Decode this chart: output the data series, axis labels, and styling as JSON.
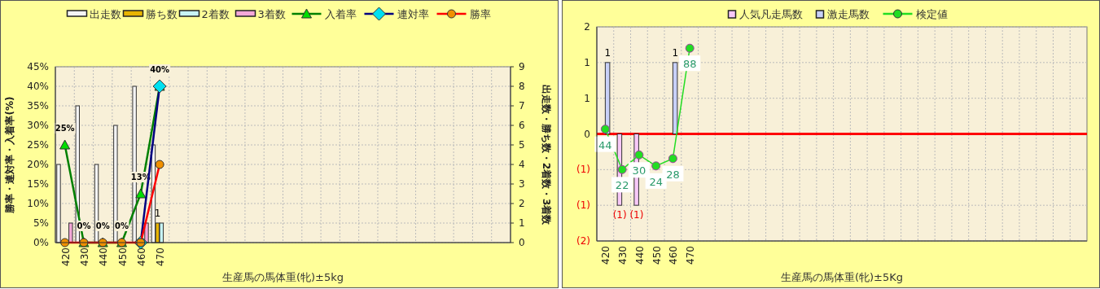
{
  "chart_data": [
    {
      "type": "bar",
      "xlabel": "生産馬の馬体重(牝)±5kg",
      "ylabel": "勝率・連対率・入着率(%)",
      "y2label": "出走数・勝ち数・2着数・3着数",
      "categories": [
        "420",
        "430",
        "440",
        "450",
        "460",
        "470",
        null,
        null,
        null,
        null,
        null,
        null,
        null,
        null,
        null,
        null,
        null,
        null,
        null,
        null,
        null,
        null,
        null,
        null
      ],
      "series": [
        {
          "name": "出走数",
          "axis": "y2",
          "color": "#f4f4f4",
          "values": [
            4,
            7,
            4,
            6,
            8,
            5,
            null,
            null,
            null,
            null,
            null,
            null,
            null,
            null,
            null,
            null,
            null,
            null,
            null,
            null,
            null,
            null,
            null,
            null
          ]
        },
        {
          "name": "勝ち数",
          "axis": "y2",
          "color": "#e8b400",
          "values": [
            null,
            null,
            null,
            null,
            null,
            1,
            null,
            null,
            null,
            null,
            null,
            null,
            null,
            null,
            null,
            null,
            null,
            null,
            null,
            null,
            null,
            null,
            null,
            null
          ],
          "value_labels": [
            null,
            null,
            null,
            null,
            null,
            "1",
            null,
            null,
            null,
            null,
            null,
            null,
            null,
            null,
            null,
            null,
            null,
            null,
            null,
            null,
            null,
            null,
            null,
            null
          ]
        },
        {
          "name": "2着数",
          "axis": "y2",
          "color": "#c8f4f4",
          "values": [
            null,
            null,
            null,
            null,
            null,
            1,
            null,
            null,
            null,
            null,
            null,
            null,
            null,
            null,
            null,
            null,
            null,
            null,
            null,
            null,
            null,
            null,
            null,
            null
          ]
        },
        {
          "name": "3着数",
          "axis": "y2",
          "color": "#f4a8d8",
          "values": [
            1,
            null,
            null,
            null,
            1,
            null,
            null,
            null,
            null,
            null,
            null,
            null,
            null,
            null,
            null,
            null,
            null,
            null,
            null,
            null,
            null,
            null,
            null,
            null
          ]
        },
        {
          "name": "入着率",
          "type": "line",
          "color": "#008000",
          "marker": "triangle",
          "values": [
            25,
            0,
            0,
            0,
            12.5,
            40,
            null,
            null,
            null,
            null,
            null,
            null,
            null,
            null,
            null,
            null,
            null,
            null,
            null,
            null,
            null,
            null,
            null,
            null
          ],
          "value_labels": [
            "25%",
            "0%",
            "0%",
            "0%",
            "13%",
            "40%",
            null,
            null,
            null,
            null,
            null,
            null,
            null,
            null,
            null,
            null,
            null,
            null,
            null,
            null,
            null,
            null,
            null,
            null
          ]
        },
        {
          "name": "連対率",
          "type": "line",
          "color": "#000080",
          "marker": "diamond",
          "values": [
            null,
            null,
            null,
            null,
            0,
            40,
            null,
            null,
            null,
            null,
            null,
            null,
            null,
            null,
            null,
            null,
            null,
            null,
            null,
            null,
            null,
            null,
            null,
            null
          ]
        },
        {
          "name": "勝率",
          "type": "line",
          "color": "#ff0000",
          "marker": "circle",
          "values": [
            0,
            0,
            0,
            0,
            0,
            20,
            null,
            null,
            null,
            null,
            null,
            null,
            null,
            null,
            null,
            null,
            null,
            null,
            null,
            null,
            null,
            null,
            null,
            null
          ]
        }
      ],
      "ylim": [
        0,
        45
      ],
      "yticks": [
        {
          "value": 0,
          "label": "0%"
        },
        {
          "value": 5,
          "label": "5%"
        },
        {
          "value": 10,
          "label": "10%"
        },
        {
          "value": 15,
          "label": "15%"
        },
        {
          "value": 20,
          "label": "20%"
        },
        {
          "value": 25,
          "label": "25%"
        },
        {
          "value": 30,
          "label": "30%"
        },
        {
          "value": 35,
          "label": "35%"
        },
        {
          "value": 40,
          "label": "40%"
        },
        {
          "value": 45,
          "label": "45%"
        }
      ],
      "y2lim": [
        0,
        9
      ],
      "y2ticks": [
        0,
        1,
        2,
        3,
        4,
        5,
        6,
        7,
        8,
        9
      ],
      "grid": true,
      "legend": "top"
    },
    {
      "type": "bar",
      "xlabel": "生産馬の馬体重(牝)±5Kg",
      "categories": [
        "420",
        "430",
        "440",
        "450",
        "460",
        "470",
        null,
        null,
        null,
        null,
        null,
        null,
        null,
        null,
        null,
        null,
        null,
        null,
        null,
        null,
        null,
        null,
        null,
        null,
        null,
        null,
        null,
        null,
        null
      ],
      "series": [
        {
          "name": "人気凡走馬数",
          "color": "#f8c8f8",
          "values": [
            null,
            -1,
            -1,
            null,
            null,
            null,
            null,
            null,
            null,
            null,
            null,
            null,
            null,
            null,
            null,
            null,
            null,
            null,
            null,
            null,
            null,
            null,
            null,
            null,
            null,
            null,
            null,
            null,
            null
          ],
          "value_labels": [
            null,
            "(1)",
            "(1)",
            null,
            null,
            null,
            null,
            null,
            null,
            null,
            null,
            null,
            null,
            null,
            null,
            null,
            null,
            null,
            null,
            null,
            null,
            null,
            null,
            null,
            null,
            null,
            null,
            null,
            null
          ]
        },
        {
          "name": "激走馬数",
          "color": "#c8d0f8",
          "values": [
            1,
            null,
            null,
            null,
            1,
            null,
            null,
            null,
            null,
            null,
            null,
            null,
            null,
            null,
            null,
            null,
            null,
            null,
            null,
            null,
            null,
            null,
            null,
            null,
            null,
            null,
            null,
            null,
            null
          ],
          "value_labels": [
            "1",
            null,
            null,
            null,
            "1",
            null,
            null,
            null,
            null,
            null,
            null,
            null,
            null,
            null,
            null,
            null,
            null,
            null,
            null,
            null,
            null,
            null,
            null,
            null,
            null,
            null,
            null,
            null,
            null
          ]
        },
        {
          "name": "検定値",
          "type": "line",
          "axis": "y2",
          "color": "#22dd22",
          "marker": "circle",
          "values": [
            44,
            22,
            30,
            24,
            28,
            88,
            null,
            null,
            null,
            null,
            null,
            null,
            null,
            null,
            null,
            null,
            null,
            null,
            null,
            null,
            null,
            null,
            null,
            null,
            null,
            null,
            null,
            null,
            null
          ],
          "data_labels": true
        }
      ],
      "ylim": [
        -1.5,
        1.5
      ],
      "yticks": [
        {
          "value": -1.5,
          "label": "(2)"
        },
        {
          "value": -1,
          "label": "(1)"
        },
        {
          "value": -0.5,
          "label": "(1)"
        },
        0,
        {
          "value": 0.5,
          "label": "1"
        },
        1,
        {
          "value": 1.5,
          "label": "2"
        }
      ],
      "y2lim": [
        -16.8,
        99.6
      ],
      "ref_lines": [
        {
          "axis": "y",
          "value": 0,
          "color": "#ff0000"
        }
      ],
      "grid": true,
      "legend": "top"
    }
  ]
}
